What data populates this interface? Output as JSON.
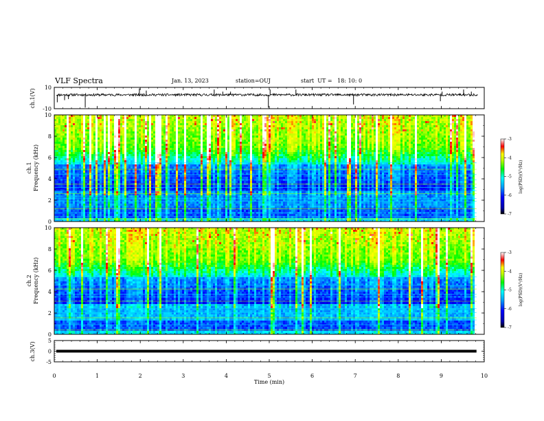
{
  "header": {
    "title": "VLF Spectra",
    "date": "Jan. 13, 2023",
    "station": "station=OUJ",
    "start": "start  UT =   18: 10: 0"
  },
  "chart_data": [
    {
      "type": "line",
      "panel": "ch1-waveform",
      "ylabel": "ch.1(V)",
      "ylim": [
        -10,
        10
      ],
      "yticks": [
        10,
        -10
      ],
      "baseline_value": 3,
      "xlim": [
        0,
        10
      ],
      "spikes": [
        {
          "x": 0.07,
          "y": -4
        },
        {
          "x": 0.24,
          "y": -2
        },
        {
          "x": 0.33,
          "y": -1
        },
        {
          "x": 0.72,
          "y": -9
        },
        {
          "x": 1.98,
          "y": 9
        },
        {
          "x": 2.14,
          "y": 7
        },
        {
          "x": 3.72,
          "y": 8
        },
        {
          "x": 3.92,
          "y": 6
        },
        {
          "x": 4.1,
          "y": 6
        },
        {
          "x": 4.98,
          "y": -9
        },
        {
          "x": 5.02,
          "y": 8
        },
        {
          "x": 5.62,
          "y": 8
        },
        {
          "x": 6.96,
          "y": -6
        },
        {
          "x": 8.98,
          "y": -3
        },
        {
          "x": 9.02,
          "y": 6
        },
        {
          "x": 9.52,
          "y": 8
        },
        {
          "x": 9.7,
          "y": 6
        }
      ]
    },
    {
      "type": "heatmap",
      "panel": "ch1-spectrogram",
      "ylabel_top": "ch.1",
      "ylabel": "Frequency  (kHz)",
      "ylim": [
        0,
        10
      ],
      "yticks": [
        0,
        2,
        4,
        6,
        8,
        10
      ],
      "xlim": [
        0,
        10
      ],
      "time_coverage_max": 9.82,
      "colorbar": {
        "label": "log(PSD)(V²/Hz)",
        "range": [
          -7,
          -3
        ],
        "ticks": [
          -3,
          -4,
          -5,
          -6,
          -7
        ]
      },
      "colors": {
        "cmax": "#ff0000",
        "cmid": "#00ff00",
        "cmin": "#00008b"
      }
    },
    {
      "type": "heatmap",
      "panel": "ch2-spectrogram",
      "ylabel_top": "ch.2",
      "ylabel": "Frequency  (kHz)",
      "ylim": [
        0,
        10
      ],
      "yticks": [
        0,
        2,
        4,
        6,
        8,
        10
      ],
      "xlim": [
        0,
        10
      ],
      "time_coverage_max": 9.82,
      "colorbar": {
        "label": "log(PSD)(V²/Hz)",
        "range": [
          -7,
          -3
        ],
        "ticks": [
          -3,
          -4,
          -5,
          -6,
          -7
        ]
      }
    },
    {
      "type": "line",
      "panel": "ch3-waveform",
      "ylabel": "ch.3(V)",
      "ylim": [
        -5,
        5
      ],
      "yticks": [
        5,
        0,
        -5
      ],
      "baseline_value": 0,
      "xlim": [
        0,
        10
      ],
      "xlabel": "Time  (min)",
      "xticks": [
        0,
        1,
        2,
        3,
        4,
        5,
        6,
        7,
        8,
        9,
        10
      ]
    }
  ]
}
